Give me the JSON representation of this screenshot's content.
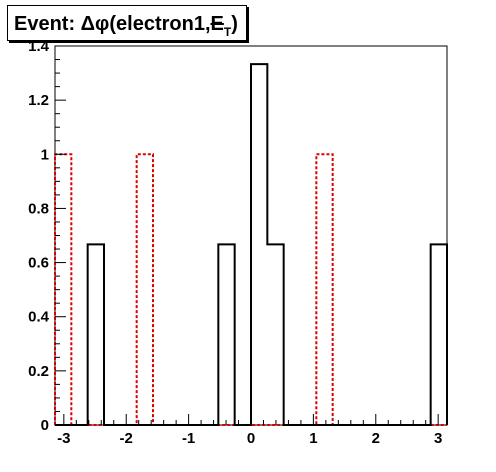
{
  "title": {
    "prefix": "Event: Δφ(electron1,",
    "met_symbol": "E",
    "met_subscript": "T",
    "suffix": ")"
  },
  "chart_data": {
    "type": "histogram",
    "title": "Event: Δφ(electron1,E_T)",
    "xlabel": "",
    "ylabel": "",
    "xlim": [
      -3.1416,
      3.1416
    ],
    "ylim": [
      0,
      1.4
    ],
    "xticks": [
      -3,
      -2,
      -1,
      0,
      1,
      2,
      3
    ],
    "xtick_labels": [
      "-3",
      "-2",
      "-1",
      "0",
      "1",
      "2",
      "3"
    ],
    "yticks": [
      0,
      0.2,
      0.4,
      0.6,
      0.8,
      1,
      1.2,
      1.4
    ],
    "ytick_labels": [
      "0",
      "0.2",
      "0.4",
      "0.6",
      "0.8",
      "1",
      "1.2",
      "1.4"
    ],
    "bin_edges": [
      -3.1416,
      -2.8798,
      -2.618,
      -2.3562,
      -2.0944,
      -1.8326,
      -1.5708,
      -1.309,
      -1.0472,
      -0.7854,
      -0.5236,
      -0.2618,
      0.0,
      0.2618,
      0.5236,
      0.7854,
      1.0472,
      1.309,
      1.5708,
      1.8326,
      2.0944,
      2.3562,
      2.618,
      2.8798,
      3.1416
    ],
    "series": [
      {
        "color": "#000000",
        "style": "solid",
        "values": [
          0,
          0,
          0.667,
          0,
          0,
          0,
          0,
          0,
          0,
          0,
          0.667,
          0,
          1.333,
          0.667,
          0,
          0,
          0,
          0,
          0,
          0,
          0,
          0,
          0,
          0.667
        ]
      },
      {
        "color": "#dd0000",
        "style": "dashed",
        "values": [
          1,
          0,
          0,
          0,
          0,
          1,
          0,
          0,
          0,
          0,
          0,
          0,
          0,
          0,
          0,
          0,
          1,
          0,
          0,
          0,
          0,
          0,
          0,
          0
        ]
      }
    ]
  }
}
